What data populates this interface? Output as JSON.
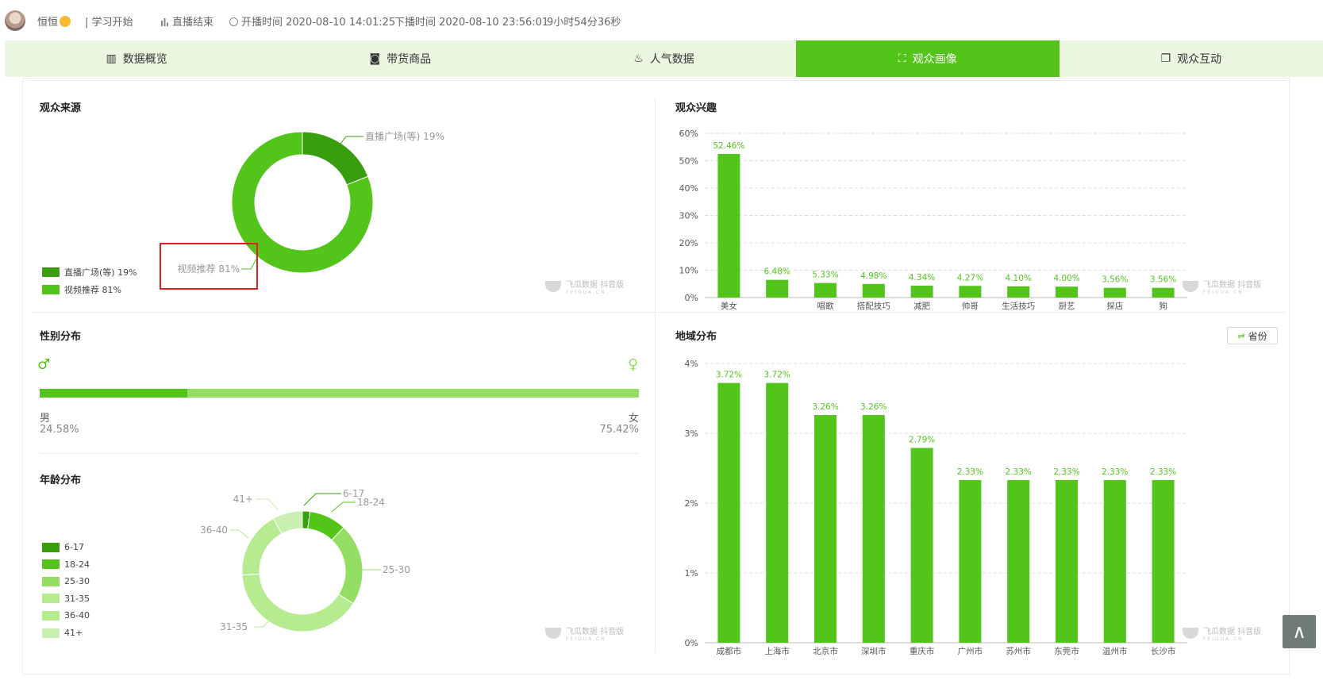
{
  "header": {
    "username": "恒恒",
    "subtitle": "| 学习开始",
    "status": "直播结束",
    "start_time": "开播时间 2020-08-10 14:01:25",
    "end_time": "下播时间 2020-08-10 23:56:01",
    "duration": "9小时54分36秒"
  },
  "tabs": [
    {
      "label": "数据概览",
      "icon": "bar-chart-icon"
    },
    {
      "label": "带货商品",
      "icon": "basket-icon"
    },
    {
      "label": "人气数据",
      "icon": "flame-icon"
    },
    {
      "label": "观众画像",
      "icon": "user-frame-icon"
    },
    {
      "label": "观众互动",
      "icon": "chat-icon"
    }
  ],
  "active_tab": 3,
  "sections": {
    "source": "观众来源",
    "interest": "观众兴趣",
    "gender": "性别分布",
    "age": "年龄分布",
    "region": "地域分布"
  },
  "region_button": "省份",
  "watermark": {
    "name": "飞瓜数据",
    "badge": "抖音版",
    "domain": "FEIGUA.CN"
  },
  "colors": {
    "dark_green": "#389e0d",
    "green": "#52c41a",
    "light_green": "#95de64",
    "pale_green": "#b7eb8f",
    "paler_green": "#c9f0b0",
    "highlight_red": "#e02020"
  },
  "gender": {
    "male_label": "男",
    "male_value": "24.58%",
    "male_fraction": 0.2458,
    "female_label": "女",
    "female_value": "75.42%"
  },
  "chart_data": [
    {
      "type": "pie",
      "title": "观众来源",
      "slices": [
        {
          "label": "直播广场(等)",
          "value": 19,
          "display": "直播广场(等) 19%",
          "color": "#389e0d"
        },
        {
          "label": "视频推荐",
          "value": 81,
          "display": "视频推荐 81%",
          "color": "#52c41a"
        }
      ],
      "legend_placement": "bottom-left"
    },
    {
      "type": "bar",
      "title": "观众兴趣",
      "categories": [
        "美女",
        "",
        "唱歌",
        "搭配技巧",
        "减肥",
        "帅哥",
        "生活技巧",
        "厨艺",
        "探店",
        "狗"
      ],
      "values": [
        52.46,
        6.48,
        5.33,
        4.98,
        4.34,
        4.27,
        4.1,
        4.0,
        3.56,
        3.56
      ],
      "labels": [
        "52.46%",
        "6.48%",
        "5.33%",
        "4.98%",
        "4.34%",
        "4.27%",
        "4.10%",
        "4.00%",
        "3.56%",
        "3.56%"
      ],
      "yticks": [
        "0%",
        "10%",
        "20%",
        "30%",
        "40%",
        "50%",
        "60%"
      ],
      "ylim": [
        0,
        60
      ],
      "grid": true
    },
    {
      "type": "pie",
      "title": "年龄分布",
      "slices": [
        {
          "label": "6-17",
          "value": 2,
          "color": "#389e0d"
        },
        {
          "label": "18-24",
          "value": 10,
          "color": "#52c41a"
        },
        {
          "label": "25-30",
          "value": 22,
          "color": "#95de64"
        },
        {
          "label": "31-35",
          "value": 40,
          "color": "#b7eb8f"
        },
        {
          "label": "36-40",
          "value": 18,
          "color": "#b7eb8f"
        },
        {
          "label": "41+",
          "value": 8,
          "color": "#c9f0b0"
        }
      ],
      "legend_placement": "left"
    },
    {
      "type": "bar",
      "title": "地域分布",
      "categories": [
        "成都市",
        "上海市",
        "北京市",
        "深圳市",
        "重庆市",
        "广州市",
        "苏州市",
        "东莞市",
        "温州市",
        "长沙市"
      ],
      "values": [
        3.72,
        3.72,
        3.26,
        3.26,
        2.79,
        2.33,
        2.33,
        2.33,
        2.33,
        2.33
      ],
      "labels": [
        "3.72%",
        "3.72%",
        "3.26%",
        "3.26%",
        "2.79%",
        "2.33%",
        "2.33%",
        "2.33%",
        "2.33%",
        "2.33%"
      ],
      "yticks": [
        "0%",
        "1%",
        "2%",
        "3%",
        "4%"
      ],
      "ylim": [
        0,
        4
      ],
      "grid": true
    }
  ]
}
